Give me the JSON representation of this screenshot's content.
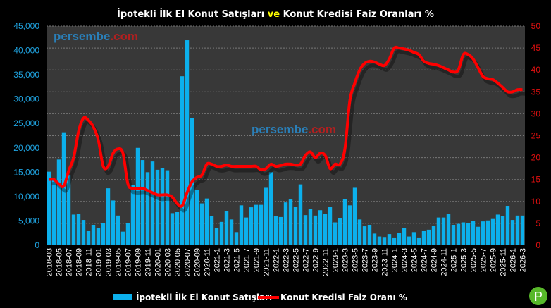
{
  "chart_data": {
    "type": "bar+line",
    "title_parts": [
      "İpotekli  İlk El Konut Satışları ",
      "ve",
      " Konut Kredisi Faiz Oranları %"
    ],
    "colors": {
      "bars": "#0cb0ec",
      "line": "#ff0000",
      "title_highlight": "#ffff00",
      "left_axis": "#1fa3e0",
      "right_axis": "#e01010",
      "plot_bg": "#383838"
    },
    "watermark": {
      "a": "persembe",
      "b": ".com"
    },
    "logo_letter": "P",
    "left_axis": {
      "min": 0,
      "max": 45000,
      "step": 5000,
      "ticks": [
        "0",
        "5,000",
        "10,000",
        "15,000",
        "20,000",
        "25,000",
        "30,000",
        "35,000",
        "40,000",
        "45,000"
      ]
    },
    "right_axis": {
      "min": 0,
      "max": 50,
      "step": 5,
      "ticks": [
        "0",
        "5",
        "10",
        "15",
        "20",
        "25",
        "30",
        "35",
        "40",
        "45",
        "50"
      ]
    },
    "grid": true,
    "legend_position": "bottom",
    "categories": [
      "2018-03",
      "2018-04",
      "2018-05",
      "2018-06",
      "2018-07",
      "2018-08",
      "2018-09",
      "2018-10",
      "2018-11",
      "2018-12",
      "2019-01",
      "2019-02",
      "2019-03",
      "2019-04",
      "2019-05",
      "2019-06",
      "2019-07",
      "2019-08",
      "2019-09",
      "2019-10",
      "2019-11",
      "2019-12",
      "2020-01",
      "2020-02",
      "2020-03",
      "2020-04",
      "2020-05",
      "2020-06",
      "2020-07",
      "2020-08",
      "2020-09",
      "2020-10",
      "2020-11",
      "2020-12",
      "2021-1",
      "2021-2",
      "2021-3",
      "2021-4",
      "2021-5",
      "2021-6",
      "2021-7",
      "2021-8",
      "2021-9",
      "2021-10",
      "2021-11",
      "2021-12",
      "2022-1",
      "2022-2",
      "2022-3",
      "2022-4",
      "2022-5",
      "2022-6",
      "2022-7",
      "2022-8",
      "2022-9",
      "2022-10",
      "2022-11",
      "2022-12",
      "2023-1",
      "2023-2",
      "2023-3",
      "2023-4",
      "2023-5",
      "2023-6",
      "2023-7",
      "2023-8",
      "2023-9",
      "2023-10",
      "2023-11",
      "2023-12",
      "2024-1",
      "2024-2",
      "2024-3",
      "2024-4",
      "2024-5",
      "2024-6",
      "2024-7",
      "2024-8",
      "2024-9",
      "2024-10",
      "2024-11",
      "2024-12",
      "2025-1",
      "2025-2",
      "2025-3",
      "2025-4",
      "2025-5",
      "2025-6",
      "2025-7",
      "2025-8",
      "2025-9",
      "2025-10",
      "2025-11",
      "2025-12",
      "2026-1",
      "2026-2",
      "2026-3"
    ],
    "series": [
      {
        "name": "İpotekli İlk El Konut Satışları",
        "type": "bar",
        "axis": "left",
        "values": [
          15100,
          13300,
          17600,
          23200,
          14300,
          6300,
          6500,
          5200,
          2900,
          4200,
          3500,
          4600,
          11700,
          9200,
          6100,
          2800,
          4600,
          12300,
          20000,
          17500,
          15000,
          17200,
          15500,
          15900,
          15400,
          6600,
          6800,
          34700,
          42100,
          26100,
          11400,
          8600,
          9600,
          6000,
          3600,
          4800,
          7000,
          5300,
          2700,
          8200,
          5700,
          7800,
          8300,
          8300,
          11800,
          15000,
          6000,
          5800,
          8800,
          9400,
          7900,
          12500,
          6200,
          7400,
          6100,
          7200,
          6500,
          7900,
          4700,
          5600,
          9500,
          8200,
          11800,
          5300,
          3900,
          4200,
          2400,
          1800,
          1700,
          2300,
          1600,
          2600,
          3500,
          1800,
          2700,
          1600,
          2900,
          3200,
          4000,
          5700,
          5700,
          6500,
          4200,
          4400,
          4700,
          4600,
          5000,
          3800,
          4900,
          5100,
          5400,
          6300,
          6000,
          8100,
          5200,
          6100,
          6100
        ]
      },
      {
        "name": "Konut Kredisi Faiz Oranı %",
        "type": "line",
        "axis": "right",
        "values": [
          15,
          15,
          14,
          13.5,
          17,
          20,
          26,
          29,
          28.5,
          27,
          24,
          18,
          18,
          21,
          22,
          21,
          14,
          13,
          13,
          13,
          12.5,
          12,
          11.5,
          11.5,
          11.5,
          11,
          9.5,
          9,
          12,
          14.5,
          15.5,
          16,
          18.5,
          18.5,
          18,
          18,
          18.3,
          18,
          18,
          18,
          18,
          18,
          18,
          17.2,
          17.5,
          18.5,
          18,
          18.2,
          18.5,
          18.5,
          18.3,
          18.5,
          20.5,
          21.3,
          20,
          21,
          20.5,
          17.5,
          18.5,
          18.5,
          22,
          33,
          37,
          40,
          41.5,
          42,
          41.8,
          41.3,
          41,
          42.5,
          45,
          45,
          44.8,
          44.5,
          44,
          43.5,
          42,
          41.5,
          41.3,
          41,
          40.5,
          40,
          39.5,
          40,
          43.5,
          43.5,
          42.5,
          40.5,
          38.5,
          38,
          37.8,
          37,
          36,
          35,
          35,
          35.5,
          35.5
        ]
      }
    ]
  }
}
